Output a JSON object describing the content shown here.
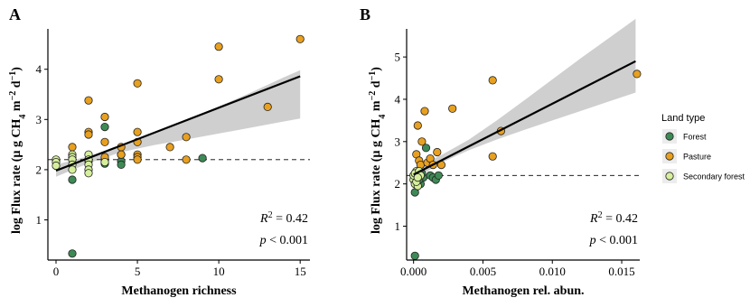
{
  "chart_data": [
    {
      "panel": "A",
      "type": "scatter",
      "xlabel": "Methanogen richness",
      "ylabel": "log Flux rate (µ g CH4 m−2 d−1)",
      "ylabel_parts": {
        "main": "log Flux rate (µ g CH",
        "sub4": "4",
        "mid": " m",
        "sup1": "−2",
        "mid2": " d",
        "sup2": "−1",
        "end": ")"
      },
      "xlim": [
        -0.5,
        15.6
      ],
      "ylim": [
        0.2,
        4.75
      ],
      "xticks": [
        0,
        5,
        10,
        15
      ],
      "yticks": [
        1,
        2,
        3,
        4
      ],
      "hline": 2.2,
      "fit": {
        "x": [
          0,
          15
        ],
        "y": [
          1.98,
          3.86
        ]
      },
      "ci": {
        "x": [
          0,
          2,
          4,
          6,
          8,
          10,
          12,
          14,
          15
        ],
        "lower": [
          1.86,
          2.13,
          2.35,
          2.49,
          2.6,
          2.72,
          2.84,
          2.96,
          3.02
        ],
        "upper": [
          2.1,
          2.27,
          2.48,
          2.73,
          2.99,
          3.26,
          3.54,
          3.84,
          3.98
        ]
      },
      "stats": {
        "r2": "= 0.42",
        "p": "< 0.001"
      },
      "series": [
        {
          "name": "Forest",
          "color": "#3e8a55",
          "points": [
            [
              1,
              1.8
            ],
            [
              1,
              0.33
            ],
            [
              3,
              2.85
            ],
            [
              3,
              2.12
            ],
            [
              3,
              2.2
            ],
            [
              4,
              2.17
            ],
            [
              4,
              2.3
            ],
            [
              4,
              2.1
            ],
            [
              2,
              2.17
            ],
            [
              9,
              2.23
            ]
          ]
        },
        {
          "name": "Pasture",
          "color": "#e8a020",
          "points": [
            [
              1,
              2.45
            ],
            [
              2,
              3.38
            ],
            [
              2,
              2.75
            ],
            [
              2,
              2.7
            ],
            [
              3,
              3.05
            ],
            [
              3,
              2.55
            ],
            [
              3,
              2.25
            ],
            [
              4,
              2.45
            ],
            [
              4,
              2.3
            ],
            [
              5,
              3.72
            ],
            [
              5,
              2.75
            ],
            [
              5,
              2.55
            ],
            [
              5,
              2.3
            ],
            [
              5,
              2.25
            ],
            [
              5,
              2.2
            ],
            [
              7,
              2.45
            ],
            [
              8,
              2.65
            ],
            [
              8,
              2.2
            ],
            [
              10,
              4.45
            ],
            [
              10,
              3.8
            ],
            [
              13,
              3.25
            ],
            [
              15,
              4.6
            ]
          ]
        },
        {
          "name": "Secondary forest",
          "color": "#d6ef9c",
          "points": [
            [
              0,
              2.2
            ],
            [
              0,
              2.15
            ],
            [
              0,
              2.08
            ],
            [
              1,
              2.3
            ],
            [
              1,
              2.25
            ],
            [
              1,
              2.2
            ],
            [
              1,
              2.1
            ],
            [
              1,
              2.0
            ],
            [
              2,
              2.3
            ],
            [
              2,
              2.2
            ],
            [
              2,
              2.1
            ],
            [
              2,
              2.0
            ],
            [
              2,
              1.93
            ],
            [
              3,
              2.15
            ]
          ]
        }
      ]
    },
    {
      "panel": "B",
      "type": "scatter",
      "xlabel": "Methanogen rel. abun.",
      "ylabel": "log Flux rate (µ g CH4 m−2 d−1)",
      "ylabel_parts": {
        "main": "log Flux rate (µ g CH",
        "sub4": "4",
        "mid": " m",
        "sup1": "−2",
        "mid2": " d",
        "sup2": "−1",
        "end": ")"
      },
      "xlim": [
        -0.0005,
        0.0163
      ],
      "ylim": [
        0.2,
        5.6
      ],
      "xticks": [
        0.0,
        0.005,
        0.01,
        0.015
      ],
      "xtick_labels": [
        "0.000",
        "0.005",
        "0.010",
        "0.015"
      ],
      "yticks": [
        1,
        2,
        3,
        4,
        5
      ],
      "hline": 2.2,
      "fit": {
        "x": [
          0,
          0.016
        ],
        "y": [
          2.22,
          4.9
        ]
      },
      "ci": {
        "x": [
          0,
          0.002,
          0.004,
          0.006,
          0.008,
          0.01,
          0.012,
          0.014,
          0.016
        ],
        "lower": [
          2.1,
          2.5,
          2.8,
          3.05,
          3.28,
          3.5,
          3.72,
          3.94,
          4.16
        ],
        "upper": [
          2.35,
          2.68,
          3.05,
          3.5,
          3.98,
          4.47,
          4.96,
          5.43,
          5.9
        ]
      },
      "stats": {
        "r2": "= 0.42",
        "p": "< 0.001"
      },
      "series": [
        {
          "name": "Forest",
          "color": "#3e8a55",
          "points": [
            [
              0.0001,
              1.8
            ],
            [
              0.0001,
              0.3
            ],
            [
              0.0003,
              2.2
            ],
            [
              0.0005,
              2.0
            ],
            [
              0.0007,
              2.15
            ],
            [
              0.0009,
              2.85
            ],
            [
              0.0012,
              2.2
            ],
            [
              0.0014,
              2.15
            ],
            [
              0.0016,
              2.1
            ],
            [
              0.0018,
              2.2
            ],
            [
              0.0004,
              2.1
            ],
            [
              0.0006,
              2.25
            ]
          ]
        },
        {
          "name": "Pasture",
          "color": "#e8a020",
          "points": [
            [
              0.0002,
              2.7
            ],
            [
              0.0003,
              3.38
            ],
            [
              0.0004,
              2.55
            ],
            [
              0.0005,
              2.45
            ],
            [
              0.0006,
              3.0
            ],
            [
              0.0008,
              3.72
            ],
            [
              0.001,
              2.5
            ],
            [
              0.0012,
              2.6
            ],
            [
              0.0014,
              2.45
            ],
            [
              0.0017,
              2.75
            ],
            [
              0.002,
              2.45
            ],
            [
              0.0028,
              3.78
            ],
            [
              0.0057,
              4.45
            ],
            [
              0.0057,
              2.65
            ],
            [
              0.0063,
              3.25
            ],
            [
              0.0161,
              4.6
            ]
          ]
        },
        {
          "name": "Secondary forest",
          "color": "#d6ef9c",
          "points": [
            [
              0.0,
              2.1
            ],
            [
              0.0,
              2.2
            ],
            [
              0.0001,
              2.0
            ],
            [
              0.0002,
              2.3
            ],
            [
              0.0001,
              2.25
            ],
            [
              0.0003,
              1.95
            ],
            [
              0.0002,
              2.05
            ],
            [
              0.0004,
              2.3
            ],
            [
              0.0005,
              2.2
            ],
            [
              0.0003,
              2.15
            ]
          ]
        }
      ]
    }
  ],
  "legend": {
    "title": "Land type",
    "items": [
      {
        "label": "Forest",
        "color": "#3e8a55"
      },
      {
        "label": "Pasture",
        "color": "#e8a020"
      },
      {
        "label": "Secondary forest",
        "color": "#d6ef9c"
      }
    ]
  }
}
